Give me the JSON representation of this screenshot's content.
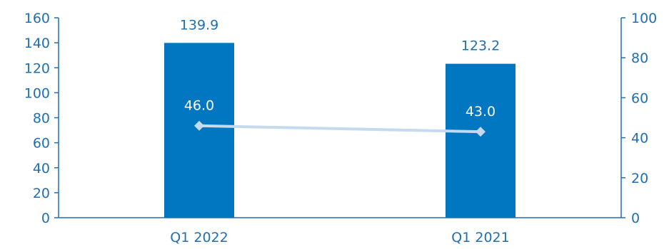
{
  "chart_data": {
    "type": "bar",
    "categories": [
      "Q1 2022",
      "Q1 2021"
    ],
    "series": [
      {
        "type": "bar",
        "axis": "left",
        "values": [
          139.9,
          123.2
        ],
        "labels": [
          "139.9",
          "123.2"
        ]
      },
      {
        "type": "line",
        "axis": "right",
        "marker": "diamond",
        "values": [
          46.0,
          43.0
        ],
        "labels": [
          "46.0",
          "43.0"
        ]
      }
    ],
    "ylim": [
      0,
      160
    ],
    "y_ticks": [
      "0",
      "20",
      "40",
      "60",
      "80",
      "100",
      "120",
      "140",
      "160"
    ],
    "y2lim": [
      0,
      100
    ],
    "y2_ticks": [
      "0",
      "20",
      "40",
      "60",
      "80",
      "100"
    ],
    "grid": false,
    "colors": {
      "bar": "#0077c0",
      "line": "#c5d9ef",
      "text": "#1f6fb2"
    }
  }
}
